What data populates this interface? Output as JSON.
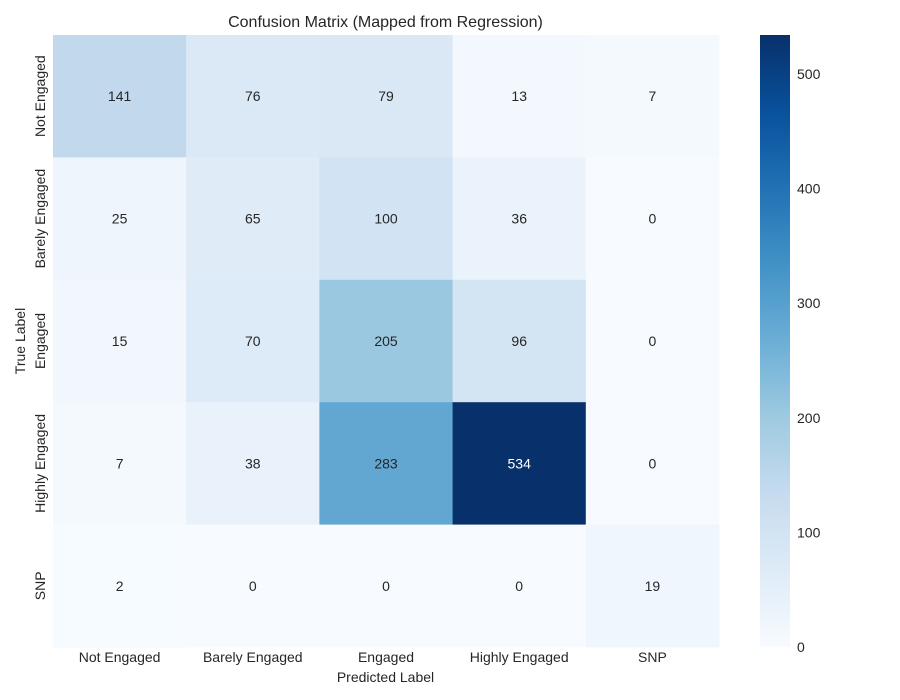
{
  "chart_data": {
    "type": "heatmap",
    "title": "Confusion Matrix (Mapped from Regression)",
    "xlabel": "Predicted Label",
    "ylabel": "True Label",
    "x_categories": [
      "Not Engaged",
      "Barely Engaged",
      "Engaged",
      "Highly Engaged",
      "SNP"
    ],
    "y_categories": [
      "Not Engaged",
      "Barely Engaged",
      "Engaged",
      "Highly Engaged",
      "SNP"
    ],
    "values": [
      [
        141,
        76,
        79,
        13,
        7
      ],
      [
        25,
        65,
        100,
        36,
        0
      ],
      [
        15,
        70,
        205,
        96,
        0
      ],
      [
        7,
        38,
        283,
        534,
        0
      ],
      [
        2,
        0,
        0,
        0,
        19
      ]
    ],
    "colormap": "Blues",
    "colorbar": {
      "min": 0,
      "max": 534,
      "ticks": [
        0,
        100,
        200,
        300,
        400,
        500
      ]
    },
    "colors": {
      "low": "#f7fbff",
      "high": "#08306b",
      "text_dark": "#262626",
      "text_light": "#ffffff"
    }
  }
}
